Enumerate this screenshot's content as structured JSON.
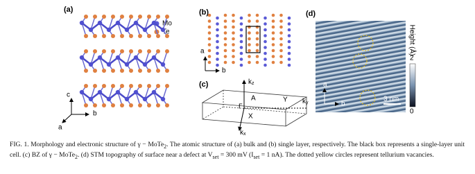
{
  "panels": {
    "a": {
      "label": "(a)",
      "legend": [
        "Mo",
        "Te"
      ],
      "axes": [
        "c",
        "b",
        "a"
      ]
    },
    "b": {
      "label": "(b)",
      "axes": [
        "a",
        "b"
      ]
    },
    "c": {
      "label": "(c)",
      "kz": {
        "base": "k",
        "sub": "z"
      },
      "ky": {
        "base": "k",
        "sub": "y"
      },
      "kx": {
        "base": "k",
        "sub": "x"
      },
      "points": [
        "A",
        "Y",
        "Γ",
        "X"
      ]
    },
    "d": {
      "label": "(d)",
      "colorbar": {
        "label": "Height (Å)",
        "max": "2",
        "min": "0"
      },
      "axes": [
        "a",
        "b"
      ],
      "scale": "3 nm"
    }
  },
  "caption": {
    "parts": [
      "FIG. 1. Morphology and electronic structure of γ − MoTe",
      "2",
      ". The atomic structure of (a) bulk and (b) single layer, respectively. The black box represents a single-layer unit cell. (c) BZ of γ − MoTe",
      "2",
      ". (d) STM topography of surface near a defect at V",
      "set",
      " = 300 mV (I",
      "set",
      " = 1 nA). The dotted yellow circles represent tellurium vacancies."
    ]
  }
}
